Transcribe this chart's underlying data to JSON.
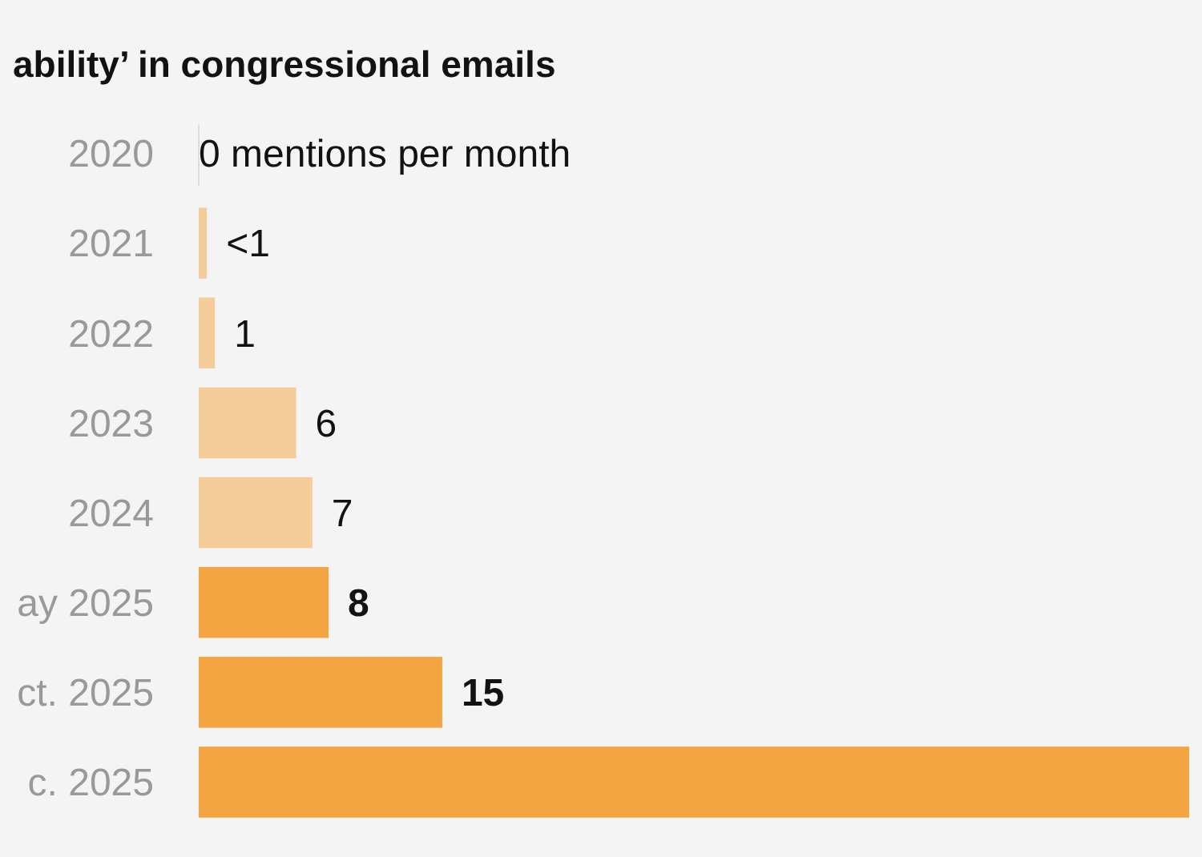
{
  "chart_data": {
    "type": "bar",
    "orientation": "horizontal",
    "relative": false,
    "title": "ability’ in congressional emails",
    "categories": [
      "2020",
      "2021",
      "2022",
      "2023",
      "2024",
      "ay 2025",
      "ct. 2025",
      "c. 2025"
    ],
    "values": [
      0,
      0.5,
      1,
      6,
      7,
      8,
      15,
      61
    ],
    "colors": [
      "#f5cd9b",
      "#f5cd9b",
      "#f5cd9b",
      "#f5cd9b",
      "#f5cd9b",
      "#f2a541",
      "#f2a541",
      "#f2a541"
    ],
    "value_labels": [
      "0 mentions per month",
      "<1",
      "1",
      "6",
      "7",
      "8",
      "15",
      null
    ]
  }
}
